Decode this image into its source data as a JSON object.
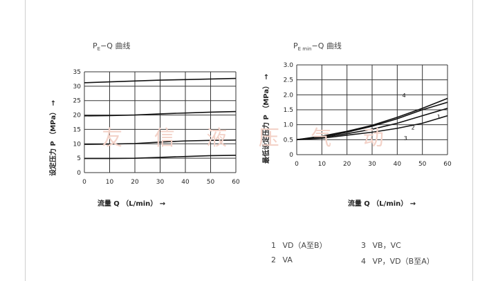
{
  "watermark": "友 信 液 压 气 动",
  "chart_data": [
    {
      "type": "line",
      "title_main": "P",
      "title_sub": "E",
      "title_rest": "−Q 曲线",
      "xlabel": "流量 Q （L/min） →",
      "ylabel": "设定压力 P （MPa） →",
      "xlim": [
        0,
        60
      ],
      "ylim": [
        0,
        35
      ],
      "xticks": [
        "0",
        "10",
        "20",
        "30",
        "40",
        "50",
        "60"
      ],
      "yticks": [
        "0",
        "5",
        "10",
        "15",
        "20",
        "25",
        "30",
        "35"
      ],
      "grid": true,
      "series": [
        {
          "x": [
            0,
            10,
            20,
            30,
            40,
            50,
            60
          ],
          "values": [
            31.2,
            31.5,
            31.8,
            32.1,
            32.3,
            32.5,
            32.7
          ]
        },
        {
          "x": [
            0,
            10,
            20,
            30,
            40,
            50,
            60
          ],
          "values": [
            19.7,
            19.8,
            20.0,
            20.4,
            20.7,
            21.0,
            21.2
          ]
        },
        {
          "x": [
            0,
            10,
            20,
            30,
            40,
            50,
            60
          ],
          "values": [
            9.8,
            9.9,
            10.1,
            10.6,
            11.0,
            11.2,
            11.3
          ]
        },
        {
          "x": [
            0,
            10,
            20,
            30,
            40,
            50,
            60
          ],
          "values": [
            4.9,
            4.9,
            5.0,
            5.3,
            5.6,
            5.9,
            6.0
          ]
        }
      ]
    },
    {
      "type": "line",
      "title_main": "P",
      "title_sub": "E min",
      "title_rest": "−Q 曲线",
      "xlabel": "流量 Q （L/min） →",
      "ylabel": "最低设定压力 P （MPa） →",
      "xlim": [
        0,
        60
      ],
      "ylim": [
        0,
        3.0
      ],
      "xticks": [
        "0",
        "10",
        "20",
        "30",
        "40",
        "50",
        "60"
      ],
      "yticks": [
        "0",
        "0.5",
        "1.0",
        "1.5",
        "2.0",
        "2.5",
        "3.0"
      ],
      "grid": true,
      "series": [
        {
          "label": "1",
          "x": [
            0,
            10,
            20,
            30,
            40,
            50,
            60
          ],
          "values": [
            0.5,
            0.55,
            0.65,
            0.75,
            0.88,
            1.05,
            1.3
          ]
        },
        {
          "label": "2",
          "x": [
            0,
            10,
            20,
            30,
            40,
            50,
            60
          ],
          "values": [
            0.5,
            0.58,
            0.7,
            0.85,
            1.05,
            1.3,
            1.55
          ]
        },
        {
          "label": "3",
          "x": [
            0,
            10,
            20,
            30,
            40,
            50,
            60
          ],
          "values": [
            0.5,
            0.6,
            0.75,
            0.95,
            1.2,
            1.5,
            1.75
          ]
        },
        {
          "label": "4",
          "x": [
            0,
            10,
            20,
            30,
            40,
            50,
            60
          ],
          "values": [
            0.5,
            0.62,
            0.78,
            0.98,
            1.25,
            1.55,
            1.88
          ]
        }
      ],
      "legend": [
        {
          "num": "1",
          "text": "VD（A至B）"
        },
        {
          "num": "2",
          "text": "VA"
        },
        {
          "num": "3",
          "text": "VB，VC"
        },
        {
          "num": "4",
          "text": "VP，VD（B至A）"
        }
      ]
    }
  ]
}
